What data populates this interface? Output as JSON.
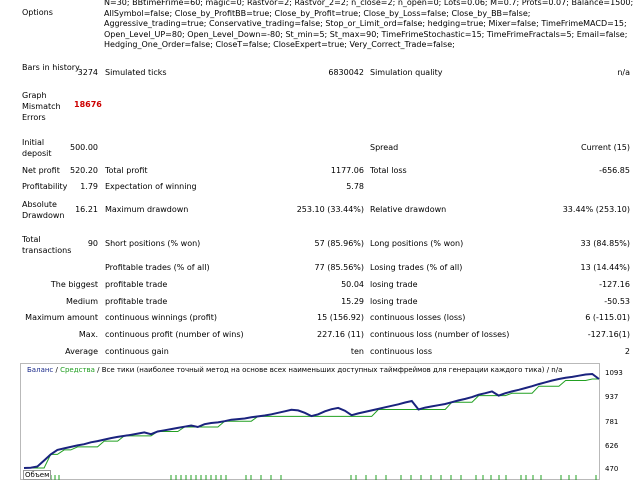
{
  "options": {
    "label": "Options",
    "text": "N=30; BBtimeFrime=60; magic=0; Rastvor=2; Rastvor_2=2; n_close=2; n_open=0; Lots=0.06; M=0.7; Prots=0.07; Balance=1500; AllSymbol=false; Close_by_ProfitBB=true; Close_by_Profit=true; Close_by_Loss=false; Close_by_BB=false; Aggressive_trading=true; Conservative_trading=false; Stop_or_Limit_ord=false; hedging=true; Mixer=false; TimeFrimeMACD=15; Open_Level_UP=80; Open_Level_Down=-80; St_min=5; St_max=90; TimeFrimeStochastic=15; TimeFrimeFractals=5; Email=false; Hedging_One_Order=false; CloseT=false; CloseExpert=true; Very_Correct_Trade=false;"
  },
  "rows": {
    "bars_label": "Bars in history",
    "bars_value": "3274",
    "ticks_label": "Simulated ticks",
    "ticks_value": "6830042",
    "quality_label": "Simulation quality",
    "quality_value": "n/a",
    "mismatch_label": "Graph Mismatch Errors",
    "mismatch_value": "18676",
    "deposit_label": "Initial deposit",
    "deposit_value": "500.00",
    "spread_label": "Spread",
    "spread_value": "Current (15)",
    "netprofit_label": "Net profit",
    "netprofit_value": "520.20",
    "totalprofit_label": "Total profit",
    "totalprofit_value": "1177.06",
    "totalloss_label": "Total loss",
    "totalloss_value": "-656.85",
    "profitability_label": "Profitability",
    "profitability_value": "1.79",
    "expect_label": "Expectation of winning",
    "expect_value": "5.78",
    "absdd_label": "Absolute Drawdown",
    "absdd_value": "16.21",
    "maxdd_label": "Maximum drawdown",
    "maxdd_value": "253.10 (33.44%)",
    "reldd_label": "Relative drawdown",
    "reldd_value": "33.44% (253.10)",
    "totaltrans_label": "Total transactions",
    "totaltrans_value": "90",
    "short_label": "Short positions (% won)",
    "short_value": "57 (85.96%)",
    "long_label": "Long positions (% won)",
    "long_value": "33 (84.85%)",
    "proftrades_label": "Profitable trades (% of all)",
    "proftrades_value": "77 (85.56%)",
    "losstrades_label": "Losing trades (% of all)",
    "losstrades_value": "13 (14.44%)",
    "biggest_label": "The biggest",
    "biggest_pt_label": "profitable trade",
    "biggest_pt_value": "50.04",
    "biggest_lt_label": "losing trade",
    "biggest_lt_value": "-127.16",
    "medium_label": "Medium",
    "medium_pt_label": "profitable trade",
    "medium_pt_value": "15.29",
    "medium_lt_label": "losing trade",
    "medium_lt_value": "-50.53",
    "maxamount_label": "Maximum amount",
    "maxamount_w_label": "continuous winnings (profit)",
    "maxamount_w_value": "15 (156.92)",
    "maxamount_l_label": "continuous losses (loss)",
    "maxamount_l_value": "6 (-115.01)",
    "max_label": "Max.",
    "max_p_label": "continuous profit (number of wins)",
    "max_p_value": "227.16 (11)",
    "max_l_label": "continuous loss (number of losses)",
    "max_l_value": "-127.16(1)",
    "avg_label": "Average",
    "avg_g_label": "continuous gain",
    "avg_g_value": "ten",
    "avg_l_label": "continuous loss",
    "avg_l_value": "2"
  },
  "chart_header": {
    "balance": "Баланс",
    "sep1": " / ",
    "equity": "Средства",
    "rest": " / Все тики (наиболее точный метод на основе всех наименьших доступных таймфреймов для генерации каждого тика) / n/a"
  },
  "volume_label": "Объем",
  "colors": {
    "balance": "#1a237e",
    "equity": "#22a022",
    "mismatch": "#cc0000"
  },
  "chart_data": {
    "type": "line",
    "ylim": [
      470,
      1093
    ],
    "yticks": [
      "1093",
      "937",
      "781",
      "626",
      "470"
    ],
    "series": [
      {
        "name": "Баланс",
        "values": [
          470,
          472,
          480,
          520,
          560,
          590,
          600,
          610,
          620,
          628,
          640,
          648,
          658,
          668,
          676,
          683,
          690,
          698,
          706,
          694,
          712,
          720,
          728,
          736,
          744,
          752,
          742,
          760,
          768,
          772,
          780,
          790,
          794,
          798,
          806,
          812,
          818,
          826,
          836,
          846,
          856,
          852,
          836,
          814,
          826,
          846,
          860,
          868,
          850,
          820,
          832,
          842,
          852,
          862,
          872,
          882,
          892,
          904,
          914,
          858,
          870,
          878,
          886,
          894,
          906,
          918,
          928,
          940,
          956,
          966,
          978,
          950,
          966,
          978,
          988,
          1000,
          1012,
          1026,
          1038,
          1050,
          1060,
          1068,
          1074,
          1082,
          1090,
          1093,
          1060
        ]
      },
      {
        "name": "Средства",
        "values": [
          470,
          470,
          470,
          470,
          560,
          560,
          590,
          590,
          610,
          610,
          610,
          610,
          648,
          648,
          648,
          683,
          683,
          683,
          683,
          683,
          712,
          712,
          712,
          712,
          742,
          742,
          742,
          742,
          742,
          742,
          780,
          780,
          780,
          780,
          780,
          812,
          812,
          812,
          812,
          812,
          812,
          812,
          812,
          812,
          812,
          812,
          812,
          812,
          812,
          812,
          812,
          812,
          812,
          858,
          858,
          858,
          858,
          858,
          858,
          858,
          858,
          858,
          858,
          858,
          906,
          906,
          906,
          906,
          950,
          950,
          950,
          950,
          950,
          966,
          966,
          966,
          966,
          1012,
          1012,
          1012,
          1012,
          1050,
          1050,
          1050,
          1050,
          1060,
          1060
        ]
      }
    ]
  }
}
